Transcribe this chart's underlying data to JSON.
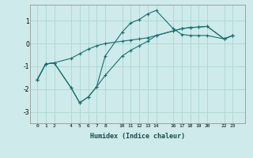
{
  "xlabel": "Humidex (Indice chaleur)",
  "ylabel": "",
  "bg_color": "#ceeaea",
  "line_color": "#1a6e6e",
  "grid_color": "#b0d8d8",
  "xlim": [
    -0.8,
    24.5
  ],
  "ylim": [
    -3.5,
    1.7
  ],
  "yticks": [
    -3,
    -2,
    -1,
    0,
    1
  ],
  "xticks": [
    0,
    1,
    2,
    4,
    5,
    6,
    7,
    8,
    10,
    11,
    12,
    13,
    14,
    16,
    17,
    18,
    19,
    20,
    22,
    23
  ],
  "line1_x": [
    0,
    1,
    2,
    4,
    5,
    6,
    7,
    8,
    10,
    11,
    12,
    13,
    14,
    16,
    17,
    18,
    19,
    20,
    22,
    23
  ],
  "line1_y": [
    -1.6,
    -0.9,
    -0.85,
    -1.95,
    -2.6,
    -2.35,
    -1.9,
    -1.4,
    -0.55,
    -0.3,
    -0.1,
    0.1,
    0.35,
    0.55,
    0.65,
    0.7,
    0.72,
    0.75,
    0.2,
    0.35
  ],
  "line2_x": [
    0,
    1,
    2,
    4,
    5,
    6,
    7,
    8,
    10,
    11,
    12,
    13,
    14,
    16,
    17,
    18,
    19,
    20,
    22,
    23
  ],
  "line2_y": [
    -1.6,
    -0.9,
    -0.85,
    -1.95,
    -2.6,
    -2.35,
    -1.9,
    -0.55,
    0.5,
    0.9,
    1.05,
    1.3,
    1.45,
    0.65,
    0.4,
    0.35,
    0.35,
    0.35,
    0.2,
    0.35
  ],
  "line3_x": [
    0,
    1,
    2,
    4,
    5,
    6,
    7,
    8,
    10,
    11,
    12,
    13,
    14,
    16,
    17,
    18,
    19,
    20,
    22,
    23
  ],
  "line3_y": [
    -1.6,
    -0.9,
    -0.85,
    -0.65,
    -0.45,
    -0.25,
    -0.1,
    0.0,
    0.1,
    0.15,
    0.2,
    0.25,
    0.35,
    0.55,
    0.65,
    0.7,
    0.72,
    0.75,
    0.2,
    0.35
  ]
}
